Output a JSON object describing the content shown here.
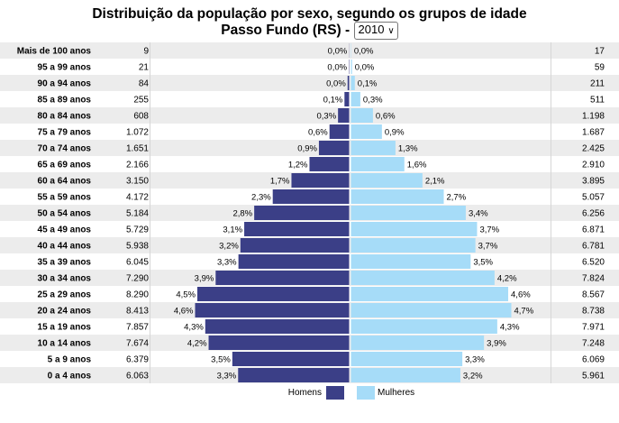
{
  "header": {
    "title": "Distribuição da população por sexo, segundo os grupos de idade",
    "subtitle_prefix": "Passo Fundo (RS) -",
    "year_select": {
      "selected": "2010"
    }
  },
  "legend": {
    "men_label": "Homens",
    "women_label": "Mulheres"
  },
  "colors": {
    "men": "#3b3f87",
    "women": "#a6dcf8",
    "row_alt": "#ececec"
  },
  "chart_data": {
    "type": "bar",
    "orientation": "horizontal-pyramid",
    "categories": [
      "Mais de 100 anos",
      "95 a 99 anos",
      "90 a 94 anos",
      "85 a 89 anos",
      "80 a 84 anos",
      "75 a 79 anos",
      "70 a 74 anos",
      "65 a 69 anos",
      "60 a 64 anos",
      "55 a 59 anos",
      "50 a 54 anos",
      "45 a 49 anos",
      "40 a 44 anos",
      "35 a 39 anos",
      "30 a 34 anos",
      "25 a 29 anos",
      "20 a 24 anos",
      "15 a 19 anos",
      "10 a 14 anos",
      "5 a 9 anos",
      "0 a 4 anos"
    ],
    "series": [
      {
        "name": "Homens",
        "counts": [
          "9",
          "21",
          "84",
          "255",
          "608",
          "1.072",
          "1.651",
          "2.166",
          "3.150",
          "4.172",
          "5.184",
          "5.729",
          "5.938",
          "6.045",
          "7.290",
          "8.290",
          "8.413",
          "7.857",
          "7.674",
          "6.379",
          "6.063"
        ],
        "percent_labels": [
          "0,0%",
          "0,0%",
          "0,0%",
          "0,1%",
          "0,3%",
          "0,6%",
          "0,9%",
          "1,2%",
          "1,7%",
          "2,3%",
          "2,8%",
          "3,1%",
          "3,2%",
          "3,3%",
          "3,9%",
          "4,5%",
          "4,6%",
          "4,3%",
          "4,2%",
          "3,5%",
          "3,3%"
        ]
      },
      {
        "name": "Mulheres",
        "counts": [
          "17",
          "59",
          "211",
          "511",
          "1.198",
          "1.687",
          "2.425",
          "2.910",
          "3.895",
          "5.057",
          "6.256",
          "6.871",
          "6.781",
          "6.520",
          "7.824",
          "8.567",
          "8.738",
          "7.971",
          "7.248",
          "6.069",
          "5.961"
        ],
        "percent_labels": [
          "0,0%",
          "0,0%",
          "0,1%",
          "0,3%",
          "0,6%",
          "0,9%",
          "1,3%",
          "1,6%",
          "2,1%",
          "2,7%",
          "3,4%",
          "3,7%",
          "3,7%",
          "3,5%",
          "4,2%",
          "4,6%",
          "4,7%",
          "4,3%",
          "3,9%",
          "3,3%",
          "3,2%"
        ]
      }
    ]
  }
}
